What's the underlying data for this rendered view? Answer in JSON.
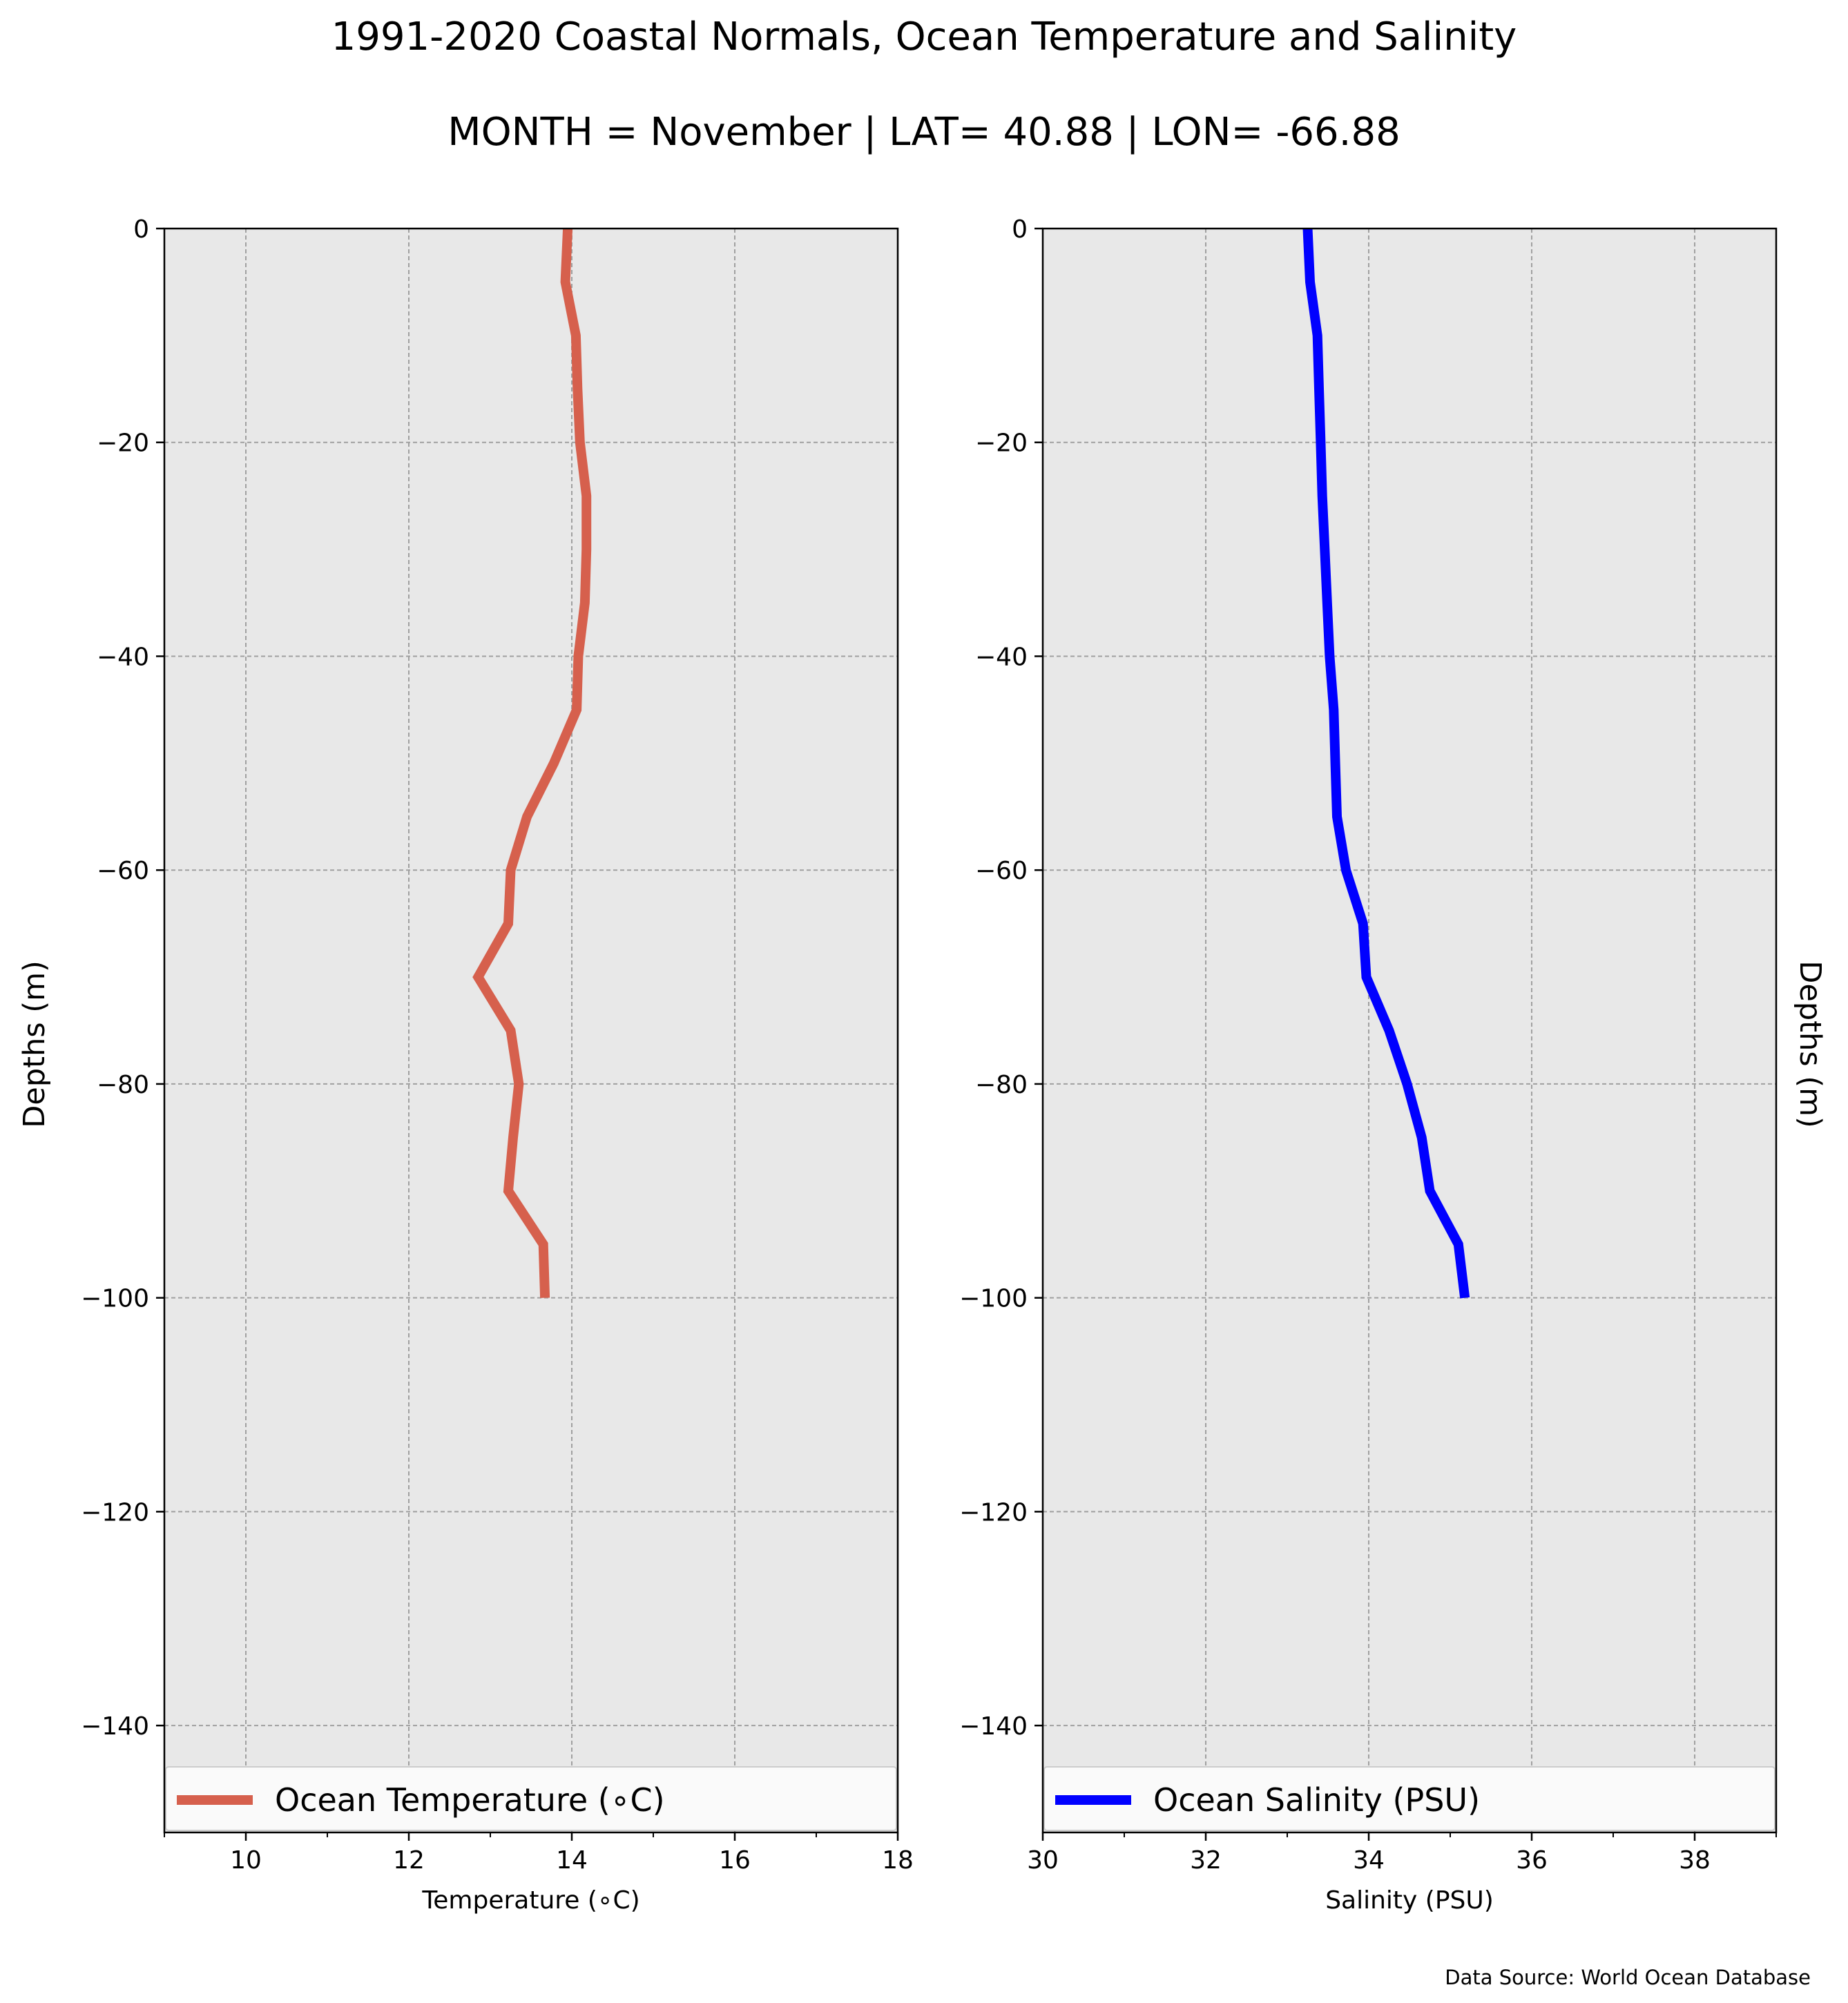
{
  "figure": {
    "title_line1": "1991-2020 Coastal Normals, Ocean Temperature and Salinity",
    "title_line2": "MONTH = November | LAT= 40.88 | LON= -66.88",
    "source": "Data Source: World Ocean Database",
    "background": "#ffffff",
    "axes_facecolor": "#e8e8e8",
    "grid_color": "#a0a0a0"
  },
  "chart_data": [
    {
      "type": "line",
      "xlabel": "Temperature (∘C)",
      "ylabel": "Depths (m)",
      "ylabel_side": "left",
      "xlim": [
        9,
        18
      ],
      "ylim": [
        -150,
        0
      ],
      "xticks": [
        10,
        12,
        14,
        16,
        18
      ],
      "xtick_labels": [
        "10",
        "12",
        "14",
        "16",
        "18"
      ],
      "xminor_ticks": [
        9,
        11,
        13,
        15,
        17
      ],
      "yticks": [
        0,
        -20,
        -40,
        -60,
        -80,
        -100,
        -120,
        -140
      ],
      "ytick_labels": [
        "0",
        "−20",
        "−40",
        "−60",
        "−80",
        "−100",
        "−120",
        "−140"
      ],
      "grid": true,
      "legend_placement": "lower",
      "series": [
        {
          "name": "Ocean Temperature (∘C)",
          "color": "#d6604d",
          "depth": [
            0,
            -5,
            -10,
            -15,
            -20,
            -25,
            -30,
            -35,
            -40,
            -45,
            -50,
            -55,
            -60,
            -65,
            -70,
            -75,
            -80,
            -85,
            -90,
            -95,
            -100
          ],
          "values": [
            13.95,
            13.92,
            14.05,
            14.07,
            14.1,
            14.18,
            14.18,
            14.16,
            14.08,
            14.06,
            13.78,
            13.45,
            13.25,
            13.22,
            12.85,
            13.25,
            13.35,
            13.28,
            13.22,
            13.65,
            13.67
          ]
        }
      ]
    },
    {
      "type": "line",
      "xlabel": "Salinity (PSU)",
      "ylabel": "Depths (m)",
      "ylabel_side": "right",
      "xlim": [
        30,
        39
      ],
      "ylim": [
        -150,
        0
      ],
      "xticks": [
        30,
        32,
        34,
        36,
        38
      ],
      "xtick_labels": [
        "30",
        "32",
        "34",
        "36",
        "38"
      ],
      "xminor_ticks": [
        31,
        33,
        35,
        37,
        39
      ],
      "yticks": [
        0,
        -20,
        -40,
        -60,
        -80,
        -100,
        -120,
        -140
      ],
      "ytick_labels": [
        "0",
        "−20",
        "−40",
        "−60",
        "−80",
        "−100",
        "−120",
        "−140"
      ],
      "grid": true,
      "legend_placement": "lower",
      "series": [
        {
          "name": "Ocean Salinity (PSU)",
          "color": "#0000ff",
          "depth": [
            0,
            -5,
            -10,
            -15,
            -20,
            -25,
            -30,
            -35,
            -40,
            -45,
            -50,
            -55,
            -60,
            -65,
            -70,
            -75,
            -80,
            -85,
            -90,
            -95,
            -100
          ],
          "values": [
            33.25,
            33.28,
            33.37,
            33.39,
            33.41,
            33.43,
            33.46,
            33.49,
            33.52,
            33.57,
            33.59,
            33.61,
            33.72,
            33.93,
            33.97,
            34.25,
            34.47,
            34.65,
            34.75,
            35.1,
            35.18
          ]
        }
      ]
    }
  ]
}
